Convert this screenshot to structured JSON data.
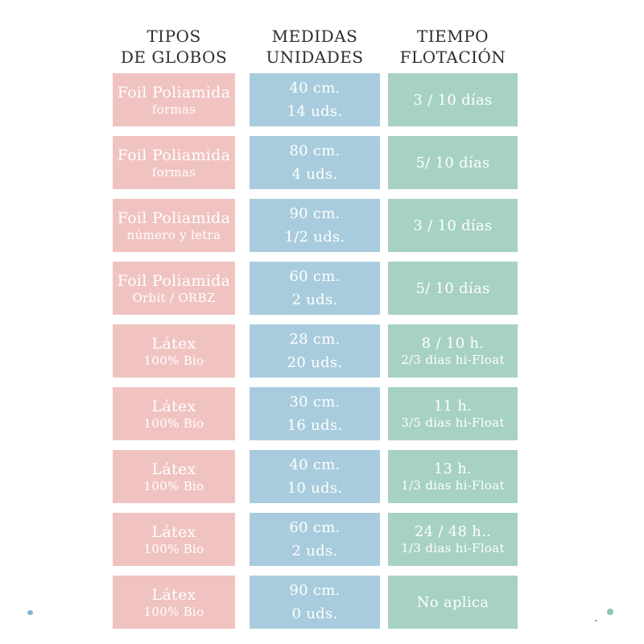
{
  "page": {
    "background": "#ffffff"
  },
  "colors": {
    "pink": "#f0c3c1",
    "blue": "#a8ccdd",
    "green": "#a6d1c4",
    "header_text": "#2d2d2d",
    "cell_text": "#ffffff",
    "dot_blue": "#7fb3d0",
    "dot_teal": "#88c6ba",
    "speck": "#9aa5a5"
  },
  "chart_data": {
    "type": "table",
    "title": "",
    "columns": [
      {
        "line1": "TIPOS",
        "line2": "DE GLOBOS"
      },
      {
        "line1": "MEDIDAS",
        "line2": "UNIDADES"
      },
      {
        "line1": "TIEMPO",
        "line2": "FLOTACIÓN"
      }
    ],
    "rows": [
      {
        "tipo": [
          "Foil Poliamida",
          "formas"
        ],
        "medidas": [
          "40 cm.",
          "14 uds."
        ],
        "flotacion": [
          "3 / 10 días"
        ]
      },
      {
        "tipo": [
          "Foil Poliamida",
          "formas"
        ],
        "medidas": [
          "80 cm.",
          "4 uds."
        ],
        "flotacion": [
          "5/ 10 días"
        ]
      },
      {
        "tipo": [
          "Foil Poliamida",
          "número y letra"
        ],
        "medidas": [
          "90 cm.",
          "1/2 uds."
        ],
        "flotacion": [
          "3 / 10 días"
        ]
      },
      {
        "tipo": [
          "Foil Poliamida",
          "Orbit / ORBZ"
        ],
        "medidas": [
          "60 cm.",
          "2 uds."
        ],
        "flotacion": [
          "5/ 10 días"
        ]
      },
      {
        "tipo": [
          "Látex",
          "100% Bio"
        ],
        "medidas": [
          "28 cm.",
          "20 uds."
        ],
        "flotacion": [
          "8 / 10 h.",
          "2/3 dias hi-Float"
        ]
      },
      {
        "tipo": [
          "Látex",
          "100% Bio"
        ],
        "medidas": [
          "30 cm.",
          "16 uds."
        ],
        "flotacion": [
          "11 h.",
          "3/5 dias hi-Float"
        ]
      },
      {
        "tipo": [
          "Látex",
          "100% Bio"
        ],
        "medidas": [
          "40 cm.",
          "10 uds."
        ],
        "flotacion": [
          "13 h.",
          "1/3 dias hi-Float"
        ]
      },
      {
        "tipo": [
          "Látex",
          "100% Bio"
        ],
        "medidas": [
          "60 cm.",
          "2 uds."
        ],
        "flotacion": [
          "24 / 48 h..",
          "1/3 dias hi-Float"
        ]
      },
      {
        "tipo": [
          "Látex",
          "100% Bio"
        ],
        "medidas": [
          "90 cm.",
          "0 uds."
        ],
        "flotacion": [
          "No aplica"
        ]
      }
    ]
  }
}
